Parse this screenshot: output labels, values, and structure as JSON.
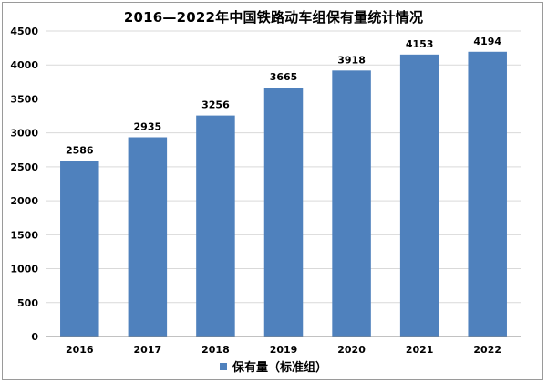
{
  "colors": {
    "bar": "#4f81bd",
    "grid": "#d9d9d9",
    "axis": "#868686",
    "text": "#000000"
  },
  "chart_data": {
    "type": "bar",
    "title": "2016—2022年中国铁路动车组保有量统计情况",
    "categories": [
      "2016",
      "2017",
      "2018",
      "2019",
      "2020",
      "2021",
      "2022"
    ],
    "series": [
      {
        "name": "保有量（标准组）",
        "values": [
          2586,
          2935,
          3256,
          3665,
          3918,
          4153,
          4194
        ]
      }
    ],
    "ylim": [
      0,
      4500
    ],
    "yticks": [
      "0",
      "500",
      "1000",
      "1500",
      "2000",
      "2500",
      "3000",
      "3500",
      "4000",
      "4500"
    ],
    "grid": true,
    "legend_position": "bottom"
  }
}
